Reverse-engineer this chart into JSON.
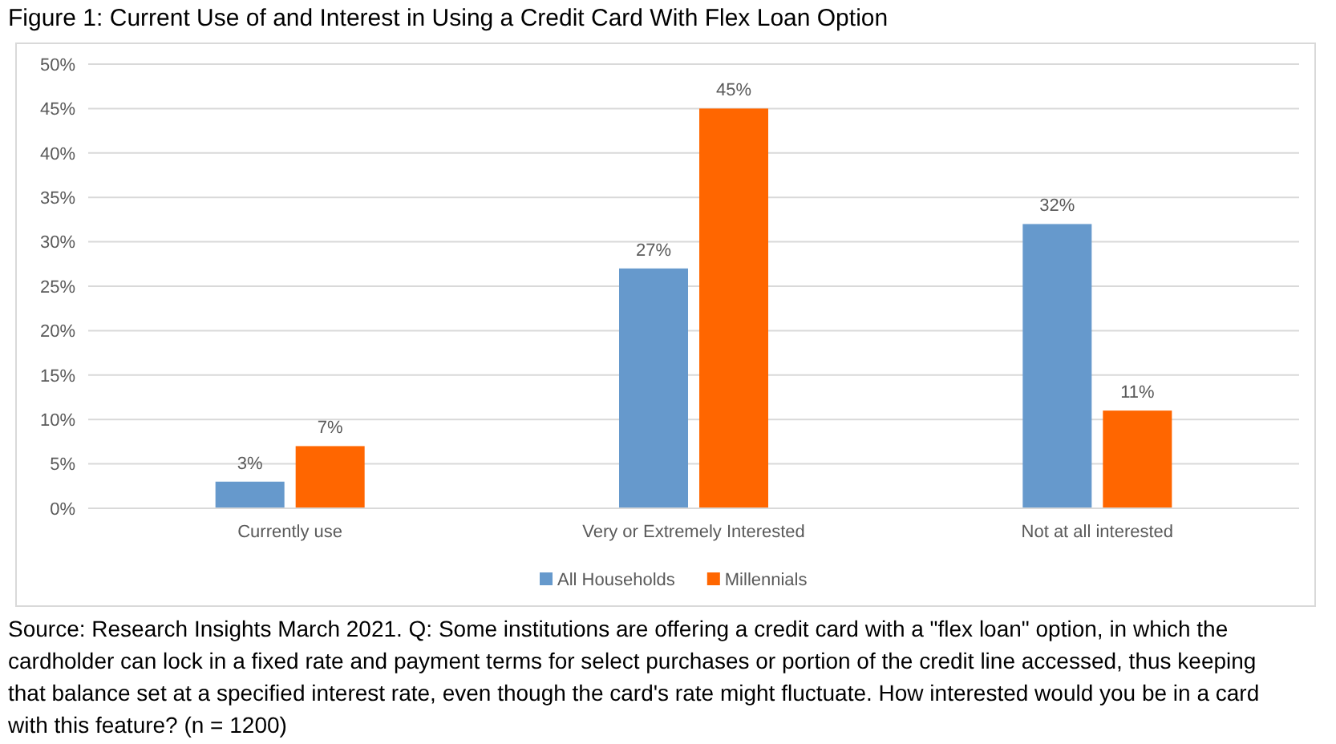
{
  "chart_data": {
    "type": "bar",
    "title": "Figure 1: Current Use of and Interest in Using a Credit Card With Flex Loan Option",
    "categories": [
      "Currently use",
      "Very or Extremely Interested",
      "Not at all interested"
    ],
    "series": [
      {
        "name": "All Households",
        "color": "#6699cc",
        "values": [
          3,
          27,
          32
        ],
        "value_labels": [
          "3%",
          "27%",
          "32%"
        ]
      },
      {
        "name": "Millennials",
        "color": "#ff6600",
        "values": [
          7,
          45,
          11
        ],
        "value_labels": [
          "7%",
          "45%",
          "11%"
        ]
      }
    ],
    "ylim": [
      0,
      50
    ],
    "yticks": [
      {
        "value": 0,
        "label": "0%"
      },
      {
        "value": 5,
        "label": "5%"
      },
      {
        "value": 10,
        "label": "10%"
      },
      {
        "value": 15,
        "label": "15%"
      },
      {
        "value": 20,
        "label": "20%"
      },
      {
        "value": 25,
        "label": "25%"
      },
      {
        "value": 30,
        "label": "30%"
      },
      {
        "value": 35,
        "label": "35%"
      },
      {
        "value": 40,
        "label": "40%"
      },
      {
        "value": 45,
        "label": "45%"
      },
      {
        "value": 50,
        "label": "50%"
      }
    ],
    "grid": "y",
    "legend": "bottom",
    "annotations": [
      "Source: Research Insights March 2021. Q: Some institutions are offering a credit card with a \"flex loan\" option, in which the cardholder can lock in a fixed rate and payment terms for select purchases or portion of the credit line accessed, thus keeping that balance set at a specified interest rate, even though the card's rate might fluctuate. How interested would you be in a card with this feature? (n = 1200)"
    ]
  }
}
